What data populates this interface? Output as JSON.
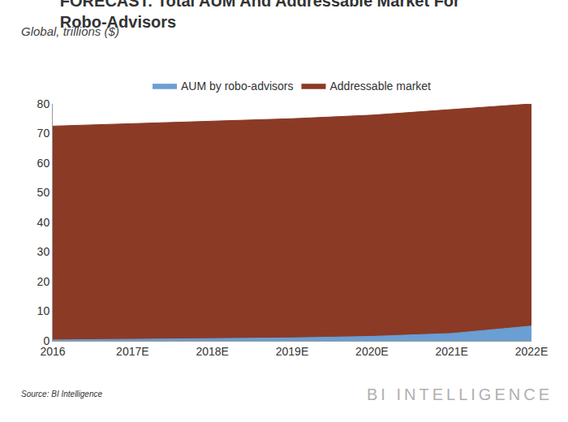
{
  "chart_data": {
    "type": "area",
    "title": "FORECAST: Total AUM And Addressable Market For Robo-Advisors",
    "subtitle": "Global, trillions ($)",
    "categories": [
      "2016",
      "2017E",
      "2018E",
      "2019E",
      "2020E",
      "2021E",
      "2022E"
    ],
    "series": [
      {
        "name": "AUM by robo-advisors",
        "color": "#6a9fd4",
        "values": [
          0.3,
          0.5,
          0.7,
          1.0,
          1.5,
          2.5,
          5.0
        ]
      },
      {
        "name": "Addressable market",
        "color": "#8b3a26",
        "values": [
          72.5,
          73.3,
          74.0,
          75.0,
          76.2,
          78.0,
          80.0
        ]
      }
    ],
    "ylim": [
      0,
      80
    ],
    "yticks": [
      0,
      10,
      20,
      30,
      40,
      50,
      60,
      70,
      80
    ],
    "grid": false,
    "legend": "top",
    "stacked": false,
    "annotations": [
      "Source: BI Intelligence",
      "BI INTELLIGENCE"
    ]
  }
}
